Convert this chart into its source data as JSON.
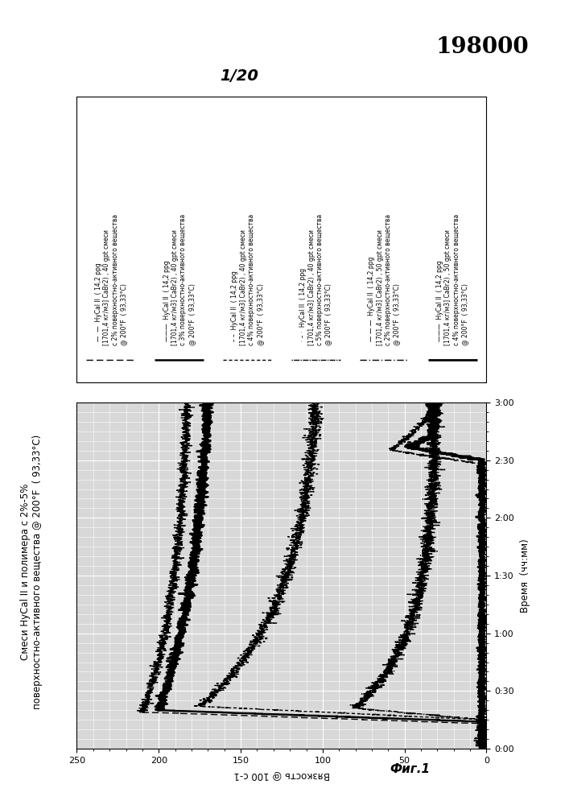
{
  "title_number": "198000",
  "page_label": "1/20",
  "fig_label": "Фиг.1",
  "chart_title_line1": "Смеси HyCal II и полимера с 2%-5%",
  "chart_title_line2": "поверхностно-активного вещества @ 200°F  ( 93,33°C)",
  "xlabel": "Время  (чч:мм)",
  "ylabel": "Вязкость @ 100 с-1",
  "xlim": [
    0,
    180
  ],
  "ylim": [
    0,
    250
  ],
  "yticks": [
    0,
    50,
    100,
    150,
    200,
    250
  ],
  "xtick_labels": [
    "0:00",
    "0:30",
    "1:00",
    "1:30",
    "2:00",
    "2:30",
    "3:00"
  ],
  "xtick_positions": [
    0,
    30,
    60,
    90,
    120,
    150,
    180
  ],
  "legend_line_prefixes": [
    "  —  —  ",
    "  ———  ",
    "  – –  ",
    "  · – ·  ",
    "  — — —  ",
    "  ———  "
  ],
  "legend_texts": [
    "HyCal II  ( 14,2 ppg\n[1701,4 кг/м3] CaBr2) , 40 gpt смеси\nc 2% поверхностно-активного вещества\n@ 200°F  ( 93,33°C)",
    "HyCal II  ( 14,2 ppg\n[1701,4 кг/м3] CaBr2) , 40 gpt смеси\nc 3% поверхностно-активного вещества\n@ 200°F  ( 93,33°C)",
    "HyCal II  ( 14,2 ppg\n[1701,4 кг/м3] CaBr2) , 40 gpt смеси\nc 4% поверхностно-активного вещества\n@ 200°F  ( 93,33°C)",
    "HyCal II  ( 14,2 ppg\n[1701,4 кг/м3] CaBr2) , 40 gpt смеси\nc 5% поверхностно-активного вещества\n@ 200°F  ( 93,33°C)",
    "HyCal II  ( 14,2 ppg\n[1701,4 кг/м3] CaBr2) , 50 gpt смеси\nc 2% поверхностно-активного вещества\n@ 200°F  ( 93,33°C)",
    "HyCal II  ( 14,2 ppg\n[1701,4 кг/м3] CaBr2) , 50 gpt смеси\nc 4% поверхностно-активного вещества\n@ 200°F  ( 93,33°C)"
  ],
  "background_color": "#ffffff",
  "plot_bg_color": "#d8d8d8",
  "grid_color": "#ffffff"
}
